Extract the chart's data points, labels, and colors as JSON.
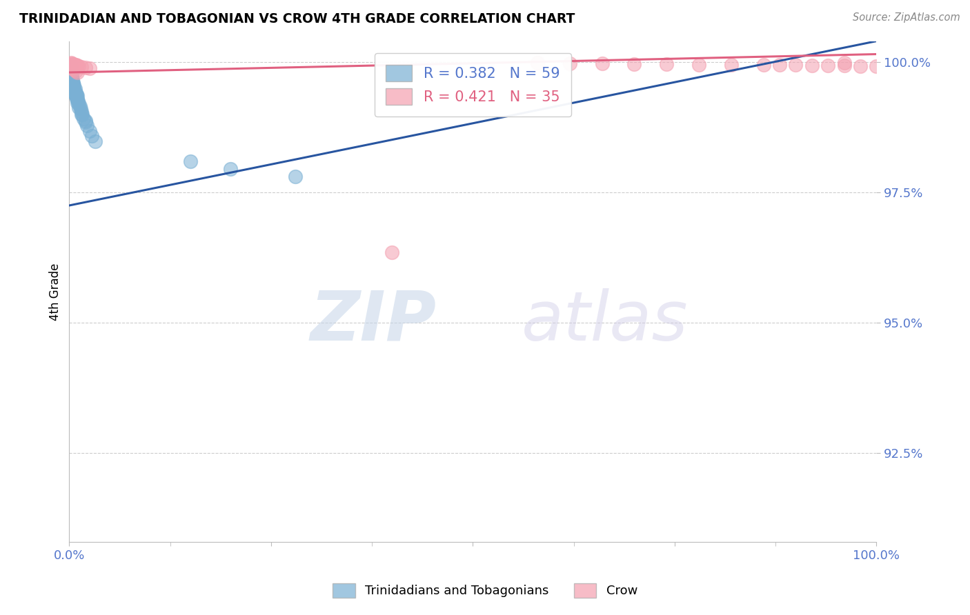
{
  "title": "TRINIDADIAN AND TOBAGONIAN VS CROW 4TH GRADE CORRELATION CHART",
  "source_text": "Source: ZipAtlas.com",
  "ylabel": "4th Grade",
  "legend_labels": [
    "Trinidadians and Tobagonians",
    "Crow"
  ],
  "r_blue": 0.382,
  "n_blue": 59,
  "r_pink": 0.421,
  "n_pink": 35,
  "blue_color": "#7ab0d4",
  "pink_color": "#f4a0b0",
  "trendline_blue": "#2855a0",
  "trendline_pink": "#e06080",
  "text_color": "#5577cc",
  "xlim": [
    0.0,
    1.0
  ],
  "ylim": [
    0.908,
    1.004
  ],
  "yticks": [
    1.0,
    0.975,
    0.95,
    0.925
  ],
  "ytick_labels": [
    "100.0%",
    "97.5%",
    "95.0%",
    "92.5%"
  ],
  "blue_scatter_x": [
    0.001,
    0.001,
    0.002,
    0.002,
    0.002,
    0.003,
    0.003,
    0.003,
    0.003,
    0.004,
    0.004,
    0.004,
    0.005,
    0.005,
    0.005,
    0.006,
    0.006,
    0.006,
    0.007,
    0.007,
    0.008,
    0.008,
    0.009,
    0.009,
    0.01,
    0.01,
    0.011,
    0.012,
    0.013,
    0.014,
    0.015,
    0.016,
    0.018,
    0.02,
    0.022,
    0.025,
    0.028,
    0.032,
    0.001,
    0.001,
    0.002,
    0.002,
    0.003,
    0.004,
    0.005,
    0.006,
    0.007,
    0.008,
    0.009,
    0.01,
    0.012,
    0.015,
    0.02,
    0.15,
    0.2,
    0.28,
    0.001,
    0.002,
    0.003
  ],
  "blue_scatter_y": [
    0.9985,
    0.9975,
    0.998,
    0.997,
    0.9965,
    0.9975,
    0.9968,
    0.996,
    0.9955,
    0.9965,
    0.9958,
    0.995,
    0.996,
    0.9952,
    0.9945,
    0.9955,
    0.9948,
    0.994,
    0.9948,
    0.9942,
    0.994,
    0.9935,
    0.9938,
    0.9932,
    0.9935,
    0.9928,
    0.9925,
    0.992,
    0.9915,
    0.991,
    0.9905,
    0.99,
    0.9892,
    0.9885,
    0.9878,
    0.9868,
    0.9858,
    0.9848,
    0.999,
    0.9982,
    0.9978,
    0.9972,
    0.9968,
    0.9962,
    0.9958,
    0.995,
    0.9942,
    0.9936,
    0.993,
    0.9922,
    0.9912,
    0.99,
    0.9888,
    0.981,
    0.9795,
    0.978,
    0.9995,
    0.9988,
    0.9982
  ],
  "pink_scatter_x": [
    0.002,
    0.003,
    0.004,
    0.005,
    0.006,
    0.007,
    0.008,
    0.009,
    0.01,
    0.012,
    0.015,
    0.02,
    0.025,
    0.58,
    0.62,
    0.66,
    0.7,
    0.74,
    0.78,
    0.82,
    0.86,
    0.88,
    0.9,
    0.92,
    0.94,
    0.96,
    0.98,
    1.0,
    0.003,
    0.004,
    0.006,
    0.008,
    0.01,
    0.4,
    0.96
  ],
  "pink_scatter_y": [
    0.9998,
    0.9997,
    0.9996,
    0.9996,
    0.9995,
    0.9995,
    0.9994,
    0.9993,
    0.9993,
    0.9992,
    0.9991,
    0.9989,
    0.9988,
    0.9998,
    0.9997,
    0.9997,
    0.9996,
    0.9996,
    0.9995,
    0.9995,
    0.9994,
    0.9994,
    0.9994,
    0.9993,
    0.9993,
    0.9993,
    0.9992,
    0.9992,
    0.999,
    0.9988,
    0.9985,
    0.9983,
    0.998,
    0.9635,
    0.9998
  ],
  "blue_trend_x": [
    0.0,
    1.0
  ],
  "blue_trend_y": [
    0.9725,
    1.004
  ],
  "pink_trend_x": [
    0.0,
    1.0
  ],
  "pink_trend_y": [
    0.998,
    1.0015
  ],
  "watermark_zip": "ZIP",
  "watermark_atlas": "atlas",
  "grid_color": "#cccccc",
  "grid_yticks": [
    1.0,
    0.975,
    0.95,
    0.925
  ]
}
